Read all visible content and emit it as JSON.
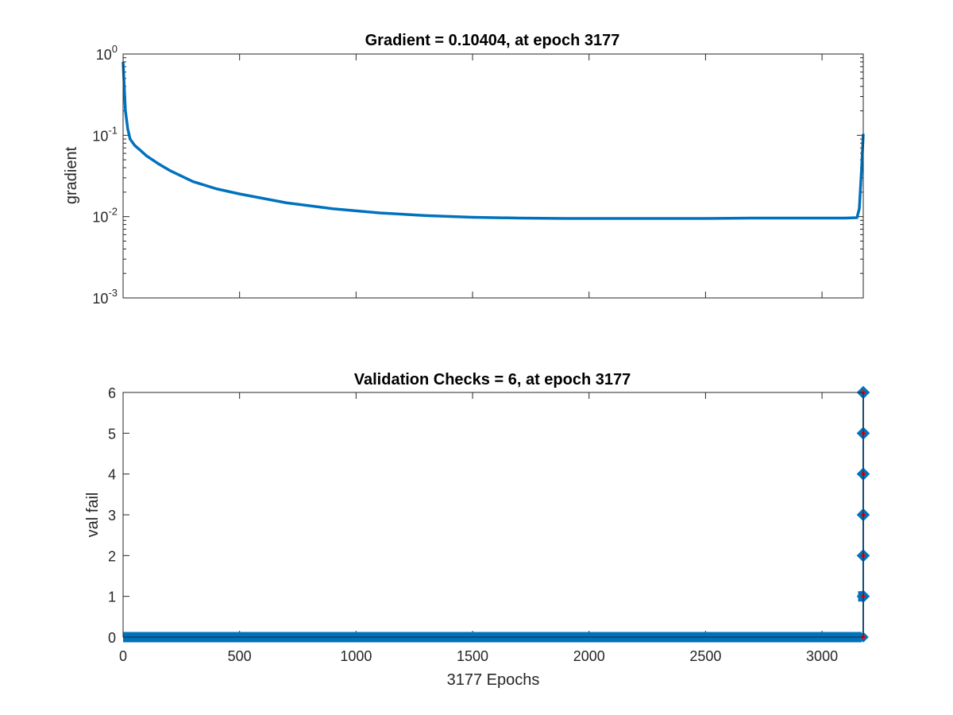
{
  "chart_data": [
    {
      "type": "line",
      "title": "Gradient = 0.10404, at epoch 3177",
      "xlabel": "",
      "ylabel": "gradient",
      "yscale": "log",
      "xlim": [
        0,
        3177
      ],
      "ylim": [
        0.001,
        1
      ],
      "x_ticks": [
        0,
        500,
        1000,
        1500,
        2000,
        2500,
        3000
      ],
      "y_ticks": [
        {
          "base": "10",
          "exp": "0",
          "value": 1
        },
        {
          "base": "10",
          "exp": "-1",
          "value": 0.1
        },
        {
          "base": "10",
          "exp": "-2",
          "value": 0.01
        },
        {
          "base": "10",
          "exp": "-3",
          "value": 0.001
        }
      ],
      "color": "#0072BD",
      "series": [
        {
          "x": [
            0,
            5,
            10,
            20,
            30,
            50,
            75,
            100,
            150,
            200,
            300,
            400,
            500,
            700,
            900,
            1100,
            1300,
            1500,
            1700,
            1900,
            2100,
            2300,
            2500,
            2700,
            2900,
            3100,
            3150,
            3160,
            3170,
            3177
          ],
          "y": [
            0.8,
            0.4,
            0.2,
            0.12,
            0.09,
            0.075,
            0.065,
            0.056,
            0.045,
            0.037,
            0.027,
            0.022,
            0.019,
            0.0148,
            0.0125,
            0.0111,
            0.0103,
            0.0098,
            0.0096,
            0.0095,
            0.0095,
            0.0095,
            0.0095,
            0.0096,
            0.0096,
            0.0096,
            0.0097,
            0.0125,
            0.04,
            0.10404
          ]
        }
      ]
    },
    {
      "type": "scatter",
      "title": "Validation Checks = 6, at epoch 3177",
      "xlabel": "3177 Epochs",
      "ylabel": "val fail",
      "xlim": [
        0,
        3177
      ],
      "ylim": [
        0,
        6
      ],
      "x_ticks": [
        0,
        500,
        1000,
        1500,
        2000,
        2500,
        3000
      ],
      "y_ticks": [
        0,
        1,
        2,
        3,
        4,
        5,
        6
      ],
      "marker_color": "#0072BD",
      "highlight_color": "#FF0000",
      "series": [
        {
          "x_start": 0,
          "x_end": 3170,
          "y": 0
        },
        {
          "x_start": 3155,
          "x_end": 3171,
          "y": 1
        },
        {
          "x": [
            3172,
            3173,
            3174,
            3175,
            3176,
            3177
          ],
          "y": [
            1,
            2,
            3,
            4,
            5,
            6
          ]
        },
        {
          "x": [
            3177
          ],
          "y": [
            0
          ]
        }
      ],
      "highlight_points": {
        "x": [
          3177,
          3177,
          3177,
          3177,
          3177,
          3177,
          3177
        ],
        "y": [
          0,
          1,
          2,
          3,
          4,
          5,
          6
        ]
      }
    }
  ]
}
